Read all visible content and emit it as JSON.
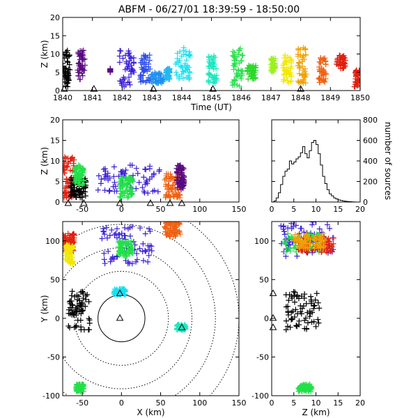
{
  "title": "ABFM - 06/27/01 18:39:59 - 18:50:00",
  "chart_data": [
    {
      "panel": "time-height",
      "type": "scatter",
      "xlabel": "Time (UT)",
      "ylabel": "Z (km)",
      "xlim": [
        1840,
        1850
      ],
      "ylim": [
        0,
        20
      ],
      "x_ticks": [
        "1840",
        "1841",
        "1842",
        "1843",
        "1844",
        "1845",
        "1846",
        "1847",
        "1848",
        "1849",
        "1850"
      ],
      "y_ticks": [
        "0",
        "5",
        "10",
        "15",
        "20"
      ],
      "station_markers_x": [
        1840.05,
        1841.05,
        1843.05,
        1845.05,
        1848.0
      ],
      "clusters": [
        {
          "x": [
            1840.0,
            1840.25
          ],
          "z": [
            1,
            11
          ],
          "color": "#000000"
        },
        {
          "x": [
            1840.5,
            1840.75
          ],
          "z": [
            3,
            11
          ],
          "color": "#5a0a80"
        },
        {
          "x": [
            1841.6,
            1841.6
          ],
          "z": [
            5,
            6
          ],
          "color": "#5a0a80"
        },
        {
          "x": [
            1841.9,
            1842.4
          ],
          "z": [
            1,
            11
          ],
          "color": "#3a1fd8"
        },
        {
          "x": [
            1842.6,
            1842.95
          ],
          "z": [
            2,
            10
          ],
          "color": "#2c4de8"
        },
        {
          "x": [
            1842.95,
            1843.4
          ],
          "z": [
            2,
            5
          ],
          "color": "#1f8ff0"
        },
        {
          "x": [
            1843.45,
            1843.6
          ],
          "z": [
            3,
            6
          ],
          "color": "#22b8f2"
        },
        {
          "x": [
            1843.8,
            1844.3
          ],
          "z": [
            3,
            12
          ],
          "color": "#19e0f0"
        },
        {
          "x": [
            1844.9,
            1845.2
          ],
          "z": [
            2,
            10
          ],
          "color": "#18e8c0"
        },
        {
          "x": [
            1845.7,
            1846.05
          ],
          "z": [
            1,
            12
          ],
          "color": "#22e048"
        },
        {
          "x": [
            1846.2,
            1846.5
          ],
          "z": [
            3,
            7
          ],
          "color": "#2ad82a"
        },
        {
          "x": [
            1847.0,
            1847.15
          ],
          "z": [
            5,
            9
          ],
          "color": "#9af21c"
        },
        {
          "x": [
            1847.4,
            1847.7
          ],
          "z": [
            2,
            10
          ],
          "color": "#f2e800"
        },
        {
          "x": [
            1847.9,
            1848.2
          ],
          "z": [
            2,
            12
          ],
          "color": "#f2a000"
        },
        {
          "x": [
            1848.6,
            1848.85
          ],
          "z": [
            2,
            9
          ],
          "color": "#f06010"
        },
        {
          "x": [
            1849.2,
            1849.5
          ],
          "z": [
            6,
            10
          ],
          "color": "#e02010"
        },
        {
          "x": [
            1849.8,
            1850.0
          ],
          "z": [
            1,
            6
          ],
          "color": "#e02010"
        }
      ]
    },
    {
      "panel": "x-height",
      "type": "scatter",
      "ylabel": "Z (km)",
      "xlim": [
        -75,
        150
      ],
      "ylim": [
        0,
        20
      ],
      "x_ticks": [
        "-50",
        "0",
        "50",
        "100",
        "150"
      ],
      "y_ticks": [
        "0",
        "5",
        "10",
        "15",
        "20"
      ],
      "station_markers_x": [
        -68,
        -48,
        -2,
        37,
        62,
        77
      ],
      "clusters": [
        {
          "x": [
            -75,
            -60
          ],
          "z": [
            1,
            11
          ],
          "color": "#e02010"
        },
        {
          "x": [
            -65,
            -45
          ],
          "z": [
            1,
            6
          ],
          "color": "#000000"
        },
        {
          "x": [
            -60,
            -48
          ],
          "z": [
            4,
            9
          ],
          "color": "#22e048"
        },
        {
          "x": [
            -30,
            50
          ],
          "z": [
            2,
            9
          ],
          "color": "#3a1fd8"
        },
        {
          "x": [
            -2,
            15
          ],
          "z": [
            1,
            6
          ],
          "color": "#22e048"
        },
        {
          "x": [
            55,
            75
          ],
          "z": [
            1,
            7
          ],
          "color": "#f06010"
        },
        {
          "x": [
            70,
            80
          ],
          "z": [
            3,
            9
          ],
          "color": "#5a0a80"
        }
      ]
    },
    {
      "panel": "height-histogram",
      "type": "line",
      "ylabel": "number of sources",
      "xlim": [
        0,
        20
      ],
      "ylim": [
        0,
        800
      ],
      "x_ticks": [
        "0",
        "5",
        "10",
        "15",
        "20"
      ],
      "y_ticks": [
        "0",
        "200",
        "400",
        "600",
        "800"
      ],
      "z": [
        0,
        0.5,
        1,
        1.5,
        2,
        2.5,
        3,
        3.5,
        4,
        4.5,
        5,
        5.5,
        6,
        6.5,
        7,
        7.5,
        8,
        8.5,
        9,
        9.5,
        10,
        10.5,
        11,
        11.5,
        12,
        12.5,
        13,
        13.5,
        14,
        14.5,
        15,
        15.5,
        16,
        16.5,
        17,
        17.5,
        18,
        18.5,
        19,
        19.5,
        20
      ],
      "counts": [
        0,
        10,
        40,
        90,
        170,
        250,
        300,
        320,
        400,
        370,
        390,
        420,
        440,
        480,
        540,
        470,
        430,
        500,
        580,
        600,
        560,
        470,
        360,
        250,
        180,
        120,
        80,
        60,
        40,
        30,
        20,
        15,
        10,
        8,
        5,
        3,
        2,
        1,
        0,
        0,
        0
      ]
    },
    {
      "panel": "plan-view",
      "type": "scatter",
      "xlabel": "X (km)",
      "ylabel": "Y (km)",
      "xlim": [
        -75,
        150
      ],
      "ylim": [
        -100,
        125
      ],
      "x_ticks": [
        "-50",
        "0",
        "50",
        "100",
        "150"
      ],
      "y_ticks": [
        "-100",
        "-50",
        "0",
        "50",
        "100"
      ],
      "range_rings_km": [
        30,
        60,
        90,
        120,
        150
      ],
      "stations": [
        [
          -2,
          32
        ],
        [
          77,
          -12
        ],
        [
          -2,
          0
        ]
      ],
      "clusters": [
        {
          "x": [
            -75,
            -60
          ],
          "y": [
            85,
            110
          ],
          "color": "#e02010"
        },
        {
          "x": [
            -72,
            -62
          ],
          "y": [
            70,
            95
          ],
          "color": "#f2e800"
        },
        {
          "x": [
            -68,
            -40
          ],
          "y": [
            -15,
            35
          ],
          "color": "#000000"
        },
        {
          "x": [
            -25,
            40
          ],
          "y": [
            70,
            120
          ],
          "color": "#3a1fd8"
        },
        {
          "x": [
            -5,
            15
          ],
          "y": [
            80,
            100
          ],
          "color": "#22e048"
        },
        {
          "x": [
            55,
            75
          ],
          "y": [
            105,
            125
          ],
          "color": "#f06010"
        },
        {
          "x": [
            -10,
            5
          ],
          "y": [
            30,
            38
          ],
          "color": "#19e0f0"
        },
        {
          "x": [
            70,
            82
          ],
          "y": [
            -15,
            -8
          ],
          "color": "#18e8c0"
        },
        {
          "x": [
            -58,
            -48
          ],
          "y": [
            -95,
            -85
          ],
          "color": "#22e048"
        }
      ]
    },
    {
      "panel": "height-y",
      "type": "scatter",
      "xlabel": "Z (km)",
      "xlim": [
        0,
        20
      ],
      "ylim": [
        -100,
        125
      ],
      "x_ticks": [
        "0",
        "5",
        "10",
        "15",
        "20"
      ],
      "y_ticks": [
        "-100",
        "-50",
        "0",
        "50",
        "100"
      ],
      "station_markers_y": [
        -12,
        0,
        32
      ],
      "clusters": [
        {
          "x": [
            2,
            14
          ],
          "y": [
            80,
            125
          ],
          "color": "#3a1fd8"
        },
        {
          "x": [
            3,
            12
          ],
          "y": [
            85,
            110
          ],
          "color": "#22e048"
        },
        {
          "x": [
            6,
            14
          ],
          "y": [
            85,
            105
          ],
          "color": "#e02010"
        },
        {
          "x": [
            5,
            12
          ],
          "y": [
            90,
            110
          ],
          "color": "#f2a000"
        },
        {
          "x": [
            3,
            11
          ],
          "y": [
            -15,
            35
          ],
          "color": "#000000"
        },
        {
          "x": [
            6,
            9
          ],
          "y": [
            -95,
            -85
          ],
          "color": "#22e048"
        }
      ]
    }
  ]
}
